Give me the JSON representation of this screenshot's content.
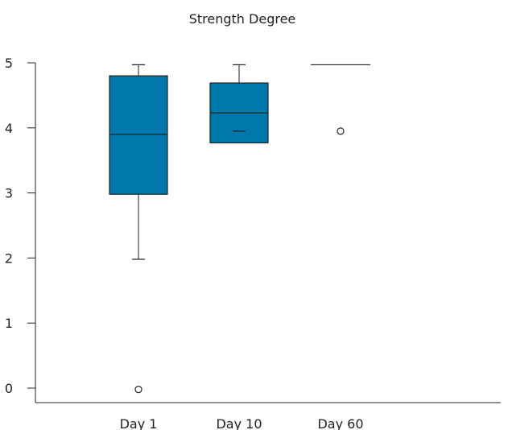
{
  "chart_data": {
    "type": "box",
    "title": "Strength Degree",
    "xlabel": "",
    "ylabel": "",
    "categories": [
      "Day 1",
      "Day 10",
      "Day 60"
    ],
    "ylim": [
      -0.2,
      5.05
    ],
    "yticks": [
      0,
      1,
      2,
      3,
      4,
      5
    ],
    "grid": false,
    "box_color": "#0077aa",
    "boxes": [
      {
        "category": "Day 1",
        "whisker_low": 1.98,
        "q1": 2.98,
        "median": 3.9,
        "q3": 4.8,
        "whisker_high": 4.97,
        "mean": null,
        "outliers": [
          -0.02
        ]
      },
      {
        "category": "Day 10",
        "whisker_low": 3.77,
        "q1": 3.77,
        "median": 4.23,
        "q3": 4.69,
        "whisker_high": 4.97,
        "mean": 3.95,
        "outliers": []
      },
      {
        "category": "Day 60",
        "whisker_low": 4.97,
        "q1": 4.97,
        "median": 4.97,
        "q3": 4.97,
        "whisker_high": 4.97,
        "mean": null,
        "outliers": [
          3.95
        ]
      }
    ]
  }
}
